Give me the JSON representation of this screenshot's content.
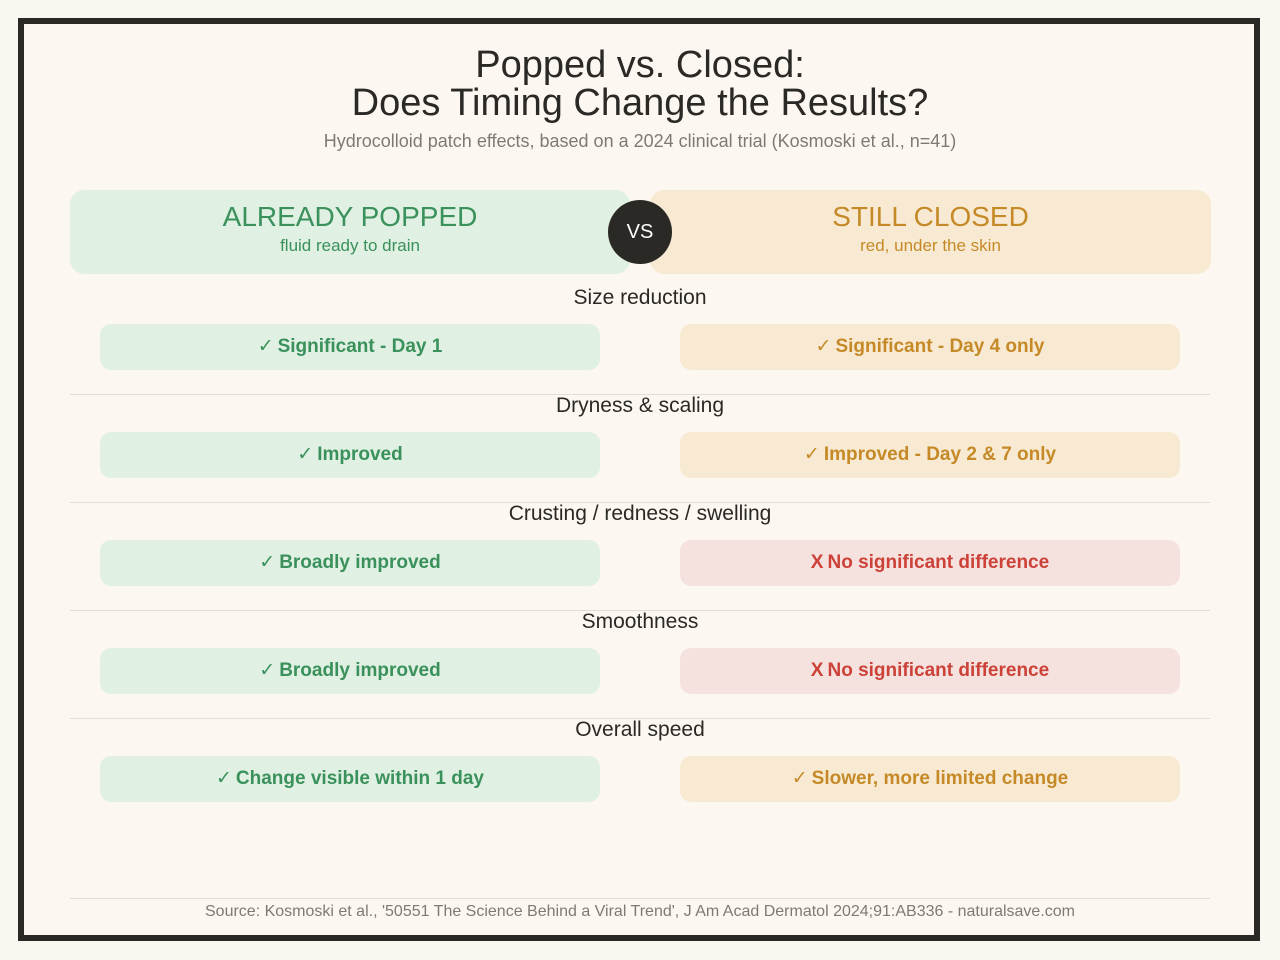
{
  "header": {
    "title_line1": "Popped vs. Closed:",
    "title_line2": "Does Timing Change the Results?",
    "subtitle": "Hydrocolloid patch effects, based on a 2024 clinical trial (Kosmoski et al., n=41)"
  },
  "columns": {
    "left": {
      "title": "ALREADY POPPED",
      "subtitle": "fluid ready to drain"
    },
    "right": {
      "title": "STILL CLOSED",
      "subtitle": "red, under the skin"
    },
    "vs_label": "VS"
  },
  "rows": [
    {
      "label": "Size reduction",
      "left": {
        "mark": "✓",
        "text": "Significant - Day 1"
      },
      "right": {
        "mark": "✓",
        "text": "Significant - Day 4 only"
      }
    },
    {
      "label": "Dryness & scaling",
      "left": {
        "mark": "✓",
        "text": "Improved"
      },
      "right": {
        "mark": "✓",
        "text": "Improved - Day 2 & 7 only"
      }
    },
    {
      "label": "Crusting / redness / swelling",
      "left": {
        "mark": "✓",
        "text": "Broadly improved"
      },
      "right": {
        "mark": "X",
        "text": "No significant difference"
      }
    },
    {
      "label": "Smoothness",
      "left": {
        "mark": "✓",
        "text": "Broadly improved"
      },
      "right": {
        "mark": "X",
        "text": "No significant difference"
      }
    },
    {
      "label": "Overall speed",
      "left": {
        "mark": "✓",
        "text": "Change visible within 1 day"
      },
      "right": {
        "mark": "✓",
        "text": "Slower, more limited change"
      }
    }
  ],
  "footer": {
    "source": "Source: Kosmoski et al., '50551 The Science Behind a Viral Trend', J Am Acad Dermatol 2024;91:AB336 - naturalsave.com"
  },
  "colors": {
    "dark": "#2b2925",
    "popped_green": "#3a915b",
    "popped_bg": "#e0f0e3",
    "closed_amber": "#c58a27",
    "closed_bg": "#f8ead2",
    "no_diff_red": "#cc4238",
    "no_diff_bg": "#f5e2df",
    "page_bg": "#fcf8f1"
  }
}
